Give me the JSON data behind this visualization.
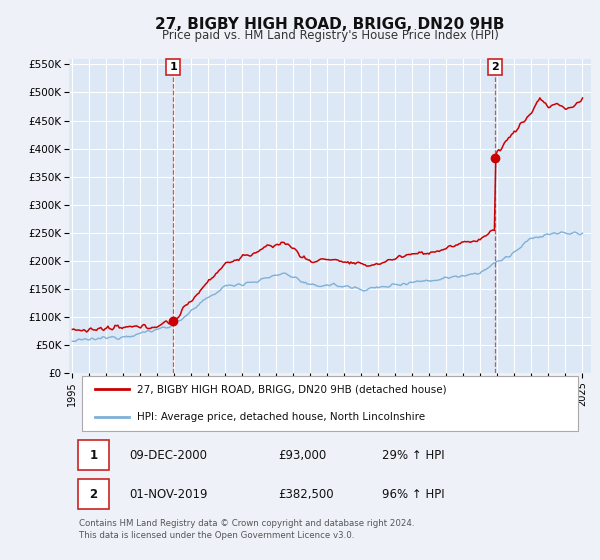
{
  "title": "27, BIGBY HIGH ROAD, BRIGG, DN20 9HB",
  "subtitle": "Price paid vs. HM Land Registry's House Price Index (HPI)",
  "background_color": "#eef2f8",
  "plot_background": "#dce8f5",
  "grid_color": "#ffffff",
  "red_color": "#cc0000",
  "blue_color": "#7fb0d8",
  "ylim": [
    0,
    560000
  ],
  "yticks": [
    0,
    50000,
    100000,
    150000,
    200000,
    250000,
    300000,
    350000,
    400000,
    450000,
    500000,
    550000
  ],
  "xlim_start": 1994.8,
  "xlim_end": 2025.5,
  "xticks": [
    1995,
    1996,
    1997,
    1998,
    1999,
    2000,
    2001,
    2002,
    2003,
    2004,
    2005,
    2006,
    2007,
    2008,
    2009,
    2010,
    2011,
    2012,
    2013,
    2014,
    2015,
    2016,
    2017,
    2018,
    2019,
    2020,
    2021,
    2022,
    2023,
    2024,
    2025
  ],
  "sale1_x": 2000.94,
  "sale1_y": 93000,
  "sale2_x": 2019.83,
  "sale2_y": 382500,
  "legend_label_red": "27, BIGBY HIGH ROAD, BRIGG, DN20 9HB (detached house)",
  "legend_label_blue": "HPI: Average price, detached house, North Lincolnshire",
  "table_row1_date": "09-DEC-2000",
  "table_row1_price": "£93,000",
  "table_row1_hpi": "29% ↑ HPI",
  "table_row2_date": "01-NOV-2019",
  "table_row2_price": "£382,500",
  "table_row2_hpi": "96% ↑ HPI",
  "footer": "Contains HM Land Registry data © Crown copyright and database right 2024.\nThis data is licensed under the Open Government Licence v3.0."
}
